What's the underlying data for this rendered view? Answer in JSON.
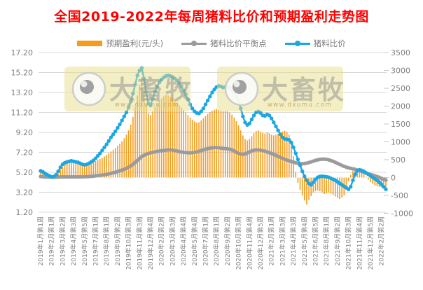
{
  "watermark": {
    "brand": "大畜牧",
    "url": "www.dxumu.com"
  },
  "chart_data": {
    "type": "combo-bar-line",
    "title": "全国2019-2022年每周猪料比价和预期盈利走势图",
    "title_color": "#ff0000",
    "grid": true,
    "legend_position": "top",
    "x_tick_interval": 5,
    "x_tick_labels": [
      "2019年1月第1周",
      "2019年2月第1周",
      "2019年3月第2周",
      "2019年4月第3周",
      "2019年5月第5周",
      "2019年7月第1周",
      "2019年8月第1周",
      "2019年9月第2周",
      "2019年10月第3周",
      "2019年11月第3周",
      "2019年12月第4周",
      "2020年2月第2周",
      "2020年3月第3周",
      "2020年4月第4周",
      "2020年5月第4周",
      "2020年7月第1周",
      "2020年8月第1周",
      "2020年9月第2周",
      "2020年10月第3周",
      "2020年11月第4周",
      "2020年12月第5周",
      "2021年2月第1周",
      "2021年3月第3周",
      "2021年4月第3周",
      "2021年5月第4周",
      "2021年6月第5周",
      "2021年8月第1周",
      "2021年9月第2周",
      "2021年10月第3周",
      "2021年11月第4周",
      "2021年12月第5周",
      "2022年2月第2周"
    ],
    "left_axis": {
      "min": 1.2,
      "max": 17.2,
      "step": 2,
      "ticks": [
        "17.20",
        "15.20",
        "13.20",
        "11.20",
        "9.20",
        "7.20",
        "5.20",
        "3.20",
        "1.20"
      ]
    },
    "right_axis": {
      "min": -1000,
      "max": 3500,
      "step": 500,
      "ticks": [
        "3500",
        "3000",
        "2500",
        "2000",
        "1500",
        "1000",
        "500",
        "0",
        "-500",
        "-1000"
      ]
    },
    "series": [
      {
        "name": "预期盈利(元/头)",
        "type": "bar",
        "axis": "right",
        "color": "#F59C1F",
        "values": [
          140,
          110,
          80,
          40,
          10,
          -30,
          -20,
          30,
          110,
          210,
          300,
          360,
          400,
          430,
          450,
          440,
          430,
          410,
          380,
          350,
          330,
          340,
          370,
          400,
          430,
          460,
          490,
          520,
          550,
          590,
          630,
          680,
          730,
          780,
          830,
          890,
          950,
          1020,
          1100,
          1200,
          1320,
          1480,
          1700,
          1980,
          2300,
          2600,
          2810,
          2450,
          2050,
          1800,
          1750,
          1850,
          1980,
          2080,
          2150,
          2220,
          2280,
          2320,
          2300,
          2260,
          2220,
          2160,
          2100,
          2030,
          1960,
          1890,
          1820,
          1750,
          1680,
          1620,
          1570,
          1540,
          1550,
          1600,
          1660,
          1720,
          1780,
          1830,
          1870,
          1900,
          1920,
          1900,
          1870,
          1850,
          1860,
          1850,
          1820,
          1760,
          1680,
          1580,
          1460,
          1320,
          1180,
          1080,
          1040,
          1080,
          1160,
          1240,
          1300,
          1320,
          1280,
          1250,
          1230,
          1260,
          1240,
          1200,
          1180,
          1200,
          1230,
          1260,
          1290,
          1310,
          1280,
          1200,
          1000,
          600,
          150,
          -150,
          -350,
          -500,
          -640,
          -755,
          -620,
          -520,
          -420,
          -380,
          -360,
          -380,
          -420,
          -460,
          -440,
          -420,
          -450,
          -490,
          -530,
          -570,
          -600,
          -560,
          -500,
          -300,
          -100,
          80,
          180,
          230,
          250,
          220,
          160,
          90,
          20,
          -60,
          -130,
          -180,
          -220,
          -240,
          -260,
          -270,
          -280,
          -290
        ]
      },
      {
        "name": "猪料比价平衡点",
        "type": "line",
        "axis": "left",
        "color": "#9B9B9B",
        "values": [
          4.78,
          4.76,
          4.75,
          4.74,
          4.73,
          4.72,
          4.72,
          4.72,
          4.73,
          4.74,
          4.75,
          4.75,
          4.75,
          4.75,
          4.75,
          4.75,
          4.75,
          4.75,
          4.75,
          4.76,
          4.76,
          4.77,
          4.78,
          4.8,
          4.82,
          4.85,
          4.88,
          4.9,
          4.93,
          4.96,
          5.0,
          5.05,
          5.1,
          5.15,
          5.2,
          5.27,
          5.35,
          5.42,
          5.5,
          5.6,
          5.72,
          5.85,
          6.0,
          6.2,
          6.4,
          6.6,
          6.78,
          6.9,
          7.0,
          7.08,
          7.15,
          7.2,
          7.25,
          7.3,
          7.33,
          7.36,
          7.4,
          7.42,
          7.45,
          7.45,
          7.42,
          7.38,
          7.33,
          7.28,
          7.24,
          7.2,
          7.18,
          7.16,
          7.15,
          7.16,
          7.2,
          7.25,
          7.3,
          7.38,
          7.45,
          7.52,
          7.58,
          7.63,
          7.66,
          7.68,
          7.68,
          7.66,
          7.63,
          7.6,
          7.58,
          7.56,
          7.52,
          7.45,
          7.35,
          7.22,
          7.1,
          7.02,
          7.0,
          7.05,
          7.15,
          7.25,
          7.35,
          7.42,
          7.45,
          7.45,
          7.42,
          7.38,
          7.32,
          7.25,
          7.18,
          7.1,
          7.0,
          6.9,
          6.8,
          6.7,
          6.6,
          6.5,
          6.42,
          6.35,
          6.28,
          6.22,
          6.16,
          6.1,
          6.08,
          6.06,
          6.08,
          6.12,
          6.18,
          6.25,
          6.32,
          6.4,
          6.45,
          6.5,
          6.52,
          6.52,
          6.5,
          6.45,
          6.38,
          6.3,
          6.2,
          6.1,
          6.0,
          5.9,
          5.8,
          5.72,
          5.65,
          5.6,
          5.55,
          5.5,
          5.42,
          5.35,
          5.28,
          5.2,
          5.12,
          5.05,
          4.98,
          4.92,
          4.85,
          4.78,
          4.7,
          4.6,
          4.5,
          4.42
        ]
      },
      {
        "name": "猪料比价",
        "type": "line",
        "axis": "left",
        "color": "#1CA7E2",
        "values": [
          5.35,
          5.25,
          5.1,
          4.95,
          4.85,
          4.75,
          4.78,
          4.95,
          5.3,
          5.7,
          6.0,
          6.15,
          6.25,
          6.3,
          6.35,
          6.3,
          6.25,
          6.2,
          6.1,
          6.0,
          5.95,
          6.0,
          6.1,
          6.25,
          6.4,
          6.6,
          6.85,
          7.1,
          7.4,
          7.7,
          8.0,
          8.35,
          8.7,
          9.0,
          9.3,
          9.65,
          10.0,
          10.4,
          10.8,
          11.2,
          11.7,
          12.3,
          13.1,
          14.0,
          14.9,
          15.4,
          15.65,
          14.6,
          13.2,
          12.1,
          11.9,
          12.6,
          13.3,
          13.8,
          14.2,
          14.5,
          14.7,
          14.85,
          14.9,
          14.85,
          14.75,
          14.6,
          14.4,
          14.1,
          13.8,
          13.4,
          13.0,
          12.5,
          12.0,
          11.6,
          11.3,
          11.15,
          11.1,
          11.3,
          11.6,
          12.0,
          12.4,
          12.8,
          13.2,
          13.5,
          13.75,
          13.85,
          13.8,
          13.7,
          13.75,
          13.8,
          13.7,
          13.4,
          13.1,
          12.8,
          12.3,
          11.6,
          10.8,
          10.2,
          9.95,
          10.1,
          10.5,
          10.9,
          11.2,
          11.3,
          11.15,
          10.9,
          10.85,
          11.0,
          10.9,
          10.6,
          10.2,
          9.8,
          9.4,
          9.0,
          8.7,
          8.55,
          8.5,
          8.45,
          8.2,
          7.7,
          7.1,
          6.5,
          5.9,
          5.3,
          4.8,
          4.4,
          4.1,
          3.95,
          4.2,
          4.5,
          4.7,
          4.78,
          4.8,
          4.78,
          4.75,
          4.7,
          4.6,
          4.5,
          4.4,
          4.25,
          4.1,
          3.95,
          3.8,
          3.65,
          3.5,
          3.75,
          4.4,
          5.0,
          5.35,
          5.45,
          5.4,
          5.3,
          5.15,
          5.0,
          4.85,
          4.7,
          4.55,
          4.4,
          4.2,
          4.0,
          3.75,
          3.5
        ]
      }
    ]
  }
}
